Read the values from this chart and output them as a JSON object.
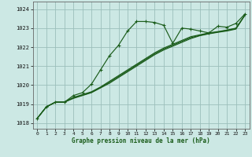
{
  "xlabel": "Graphe pression niveau de la mer (hPa)",
  "bg_color": "#cce8e4",
  "grid_color": "#9bbfbb",
  "line_color": "#1a5c1a",
  "ylim": [
    1017.7,
    1024.4
  ],
  "xlim": [
    -0.5,
    23.5
  ],
  "yticks": [
    1018,
    1019,
    1020,
    1021,
    1022,
    1023,
    1024
  ],
  "xticks": [
    0,
    1,
    2,
    3,
    4,
    5,
    6,
    7,
    8,
    9,
    10,
    11,
    12,
    13,
    14,
    15,
    16,
    17,
    18,
    19,
    20,
    21,
    22,
    23
  ],
  "series1_x": [
    0,
    1,
    2,
    3,
    4,
    5,
    6,
    7,
    8,
    9,
    10,
    11,
    12,
    13,
    14,
    15,
    16,
    17,
    18,
    19,
    20,
    21,
    22,
    23
  ],
  "series1_y": [
    1018.25,
    1018.85,
    1019.1,
    1019.1,
    1019.45,
    1019.6,
    1020.05,
    1020.8,
    1021.55,
    1022.1,
    1022.85,
    1023.35,
    1023.35,
    1023.3,
    1023.15,
    1022.2,
    1023.0,
    1022.95,
    1022.85,
    1022.75,
    1023.1,
    1023.05,
    1023.25,
    1023.75
  ],
  "series2_x": [
    0,
    1,
    2,
    3,
    4,
    5,
    6,
    7,
    8,
    9,
    10,
    11,
    12,
    13,
    14,
    15,
    16,
    17,
    18,
    19,
    20,
    21,
    22,
    23
  ],
  "series2_y": [
    1018.25,
    1018.85,
    1019.1,
    1019.1,
    1019.3,
    1019.45,
    1019.6,
    1019.85,
    1020.1,
    1020.4,
    1020.7,
    1021.0,
    1021.3,
    1021.6,
    1021.85,
    1022.05,
    1022.25,
    1022.45,
    1022.6,
    1022.7,
    1022.78,
    1022.85,
    1022.95,
    1023.7
  ],
  "series3_x": [
    0,
    1,
    2,
    3,
    4,
    5,
    6,
    7,
    8,
    9,
    10,
    11,
    12,
    13,
    14,
    15,
    16,
    17,
    18,
    19,
    20,
    21,
    22,
    23
  ],
  "series3_y": [
    1018.25,
    1018.85,
    1019.1,
    1019.1,
    1019.35,
    1019.5,
    1019.65,
    1019.9,
    1020.2,
    1020.5,
    1020.8,
    1021.1,
    1021.4,
    1021.7,
    1021.95,
    1022.15,
    1022.35,
    1022.55,
    1022.65,
    1022.75,
    1022.82,
    1022.9,
    1023.0,
    1023.7
  ],
  "series4_x": [
    0,
    1,
    2,
    3,
    4,
    5,
    6,
    7,
    8,
    9,
    10,
    11,
    12,
    13,
    14,
    15,
    16,
    17,
    18,
    19,
    20,
    21,
    22,
    23
  ],
  "series4_y": [
    1018.25,
    1018.85,
    1019.1,
    1019.1,
    1019.32,
    1019.47,
    1019.62,
    1019.87,
    1020.15,
    1020.45,
    1020.75,
    1021.05,
    1021.35,
    1021.65,
    1021.9,
    1022.1,
    1022.3,
    1022.5,
    1022.62,
    1022.72,
    1022.8,
    1022.88,
    1022.98,
    1023.68
  ]
}
